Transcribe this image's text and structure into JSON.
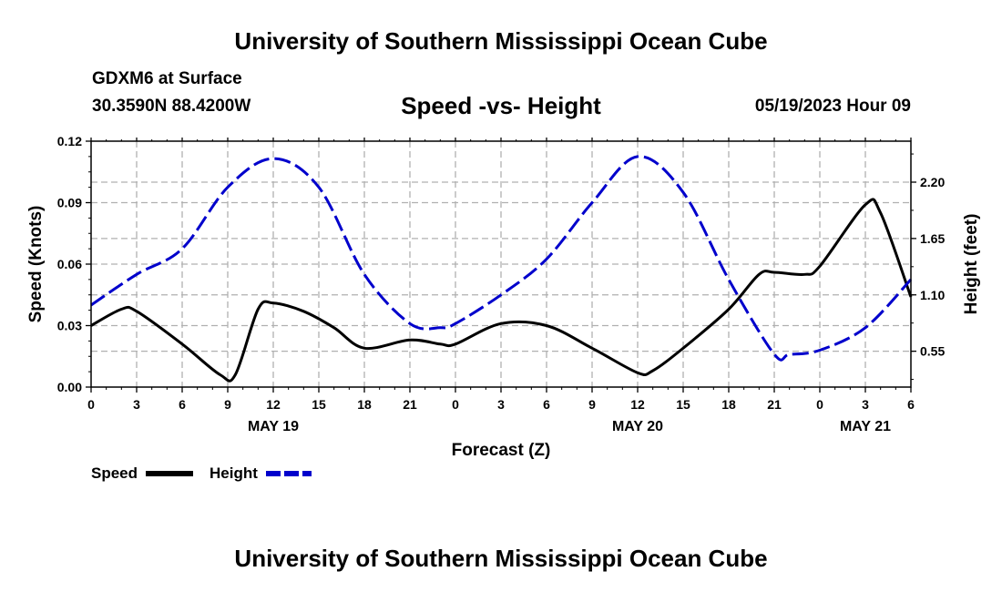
{
  "header": {
    "title": "University of Southern Mississippi Ocean Cube",
    "station": "GDXM6 at Surface",
    "coords": "30.3590N  88.4200W",
    "subtitle": "Speed -vs- Height",
    "datetime": "05/19/2023 Hour 09"
  },
  "footer": {
    "title": "University of Southern Mississippi Ocean Cube"
  },
  "colors": {
    "speed": "#000000",
    "height": "#0000cc",
    "grid": "#b0b0b0"
  },
  "chart_data": {
    "type": "line",
    "title": "Speed -vs- Height",
    "xlabel": "Forecast (Z)",
    "ylabel_left": "Speed (Knots)",
    "ylabel_right": "Height (feet)",
    "x_range_hours": [
      0,
      54
    ],
    "x_tick_hours": [
      0,
      3,
      6,
      9,
      12,
      15,
      18,
      21,
      24,
      27,
      30,
      33,
      36,
      39,
      42,
      45,
      48,
      51,
      54
    ],
    "x_tick_labels": [
      "0",
      "3",
      "6",
      "9",
      "12",
      "15",
      "18",
      "21",
      "0",
      "3",
      "6",
      "9",
      "12",
      "15",
      "18",
      "21",
      "0",
      "3",
      "6"
    ],
    "date_labels": [
      {
        "hour": 12,
        "label": "MAY 19"
      },
      {
        "hour": 36,
        "label": "MAY 20"
      },
      {
        "hour": 51,
        "label": "MAY 21"
      }
    ],
    "y_left": {
      "range": [
        0,
        0.12
      ],
      "ticks": [
        0.0,
        0.03,
        0.06,
        0.09,
        0.12
      ],
      "tick_labels": [
        "0.00",
        "0.03",
        "0.06",
        "0.09",
        "0.12"
      ]
    },
    "y_right": {
      "range": [
        0.2,
        2.6
      ],
      "ticks": [
        0.55,
        1.1,
        1.65,
        2.2
      ],
      "tick_labels": [
        "0.55",
        "1.10",
        "1.65",
        "2.20"
      ]
    },
    "series": [
      {
        "name": "Speed",
        "axis": "left",
        "style": "solid",
        "x": [
          0,
          2,
          3,
          6,
          8.5,
          9.5,
          11,
          12,
          14,
          16,
          18,
          21,
          23,
          24,
          27,
          30,
          33,
          36,
          37,
          39,
          42,
          44,
          45,
          47,
          48,
          51,
          52,
          54
        ],
        "values": [
          0.03,
          0.038,
          0.037,
          0.021,
          0.006,
          0.006,
          0.038,
          0.041,
          0.037,
          0.029,
          0.019,
          0.023,
          0.021,
          0.021,
          0.031,
          0.03,
          0.019,
          0.007,
          0.008,
          0.019,
          0.038,
          0.055,
          0.056,
          0.055,
          0.059,
          0.089,
          0.085,
          0.044
        ]
      },
      {
        "name": "Height",
        "axis": "right",
        "style": "dashed",
        "x": [
          0,
          3,
          6,
          9,
          12,
          15,
          18,
          21,
          23,
          24,
          27,
          30,
          33,
          36,
          39,
          42,
          45,
          46,
          48,
          51,
          54
        ],
        "values": [
          1.0,
          1.3,
          1.55,
          2.15,
          2.43,
          2.15,
          1.3,
          0.82,
          0.78,
          0.82,
          1.1,
          1.45,
          2.0,
          2.45,
          2.1,
          1.25,
          0.52,
          0.52,
          0.56,
          0.78,
          1.25
        ]
      }
    ]
  },
  "legend": [
    {
      "label": "Speed",
      "series": "Speed"
    },
    {
      "label": "Height",
      "series": "Height"
    }
  ]
}
